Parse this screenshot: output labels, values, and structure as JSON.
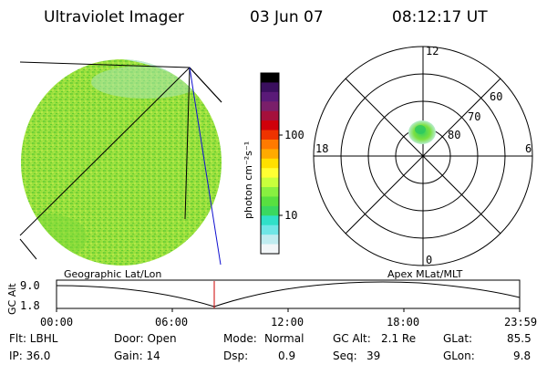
{
  "header": {
    "instrument": "Ultraviolet Imager",
    "date": "03 Jun 07",
    "time": "08:12:17 UT"
  },
  "colorbar": {
    "unit_label": "photon cm⁻²s⁻¹",
    "ticks": [
      "100",
      "10"
    ],
    "colors": [
      "#000000",
      "#3a0f5e",
      "#5a1a78",
      "#7a1f6a",
      "#a5103c",
      "#d0000a",
      "#ee3300",
      "#ff7a00",
      "#ffaa00",
      "#ffe000",
      "#ffff33",
      "#c8ff3c",
      "#88f040",
      "#58e040",
      "#3ad860",
      "#30e0c8",
      "#6fe6e6",
      "#c0ecf0",
      "#f2f6f8"
    ]
  },
  "polar": {
    "hour_labels": {
      "top": "12",
      "left": "18",
      "right": "6",
      "bottom": "0"
    },
    "lat_labels": [
      "60",
      "70",
      "80"
    ]
  },
  "timeline": {
    "y_axis_label": "GC Alt",
    "y_ticks": [
      "9.0",
      "1.8"
    ],
    "left_title": "Geographic Lat/Lon",
    "right_title": "Apex MLat/MLT",
    "x_ticks": [
      "00:00",
      "06:00",
      "12:00",
      "18:00",
      "23:59"
    ],
    "marker_color": "#cc0000"
  },
  "info": {
    "filter": "Flt: LBHL",
    "ip": "IP: 36.0",
    "door": "Door: Open",
    "gain": "Gain: 14",
    "mode_label": "Mode:",
    "mode_value": "Normal",
    "dsp_label": "Dsp:",
    "dsp_value": "0.9",
    "gcalt_label": "GC Alt:",
    "gcalt_value": "2.1 Re",
    "seq_label": "Seq:",
    "seq_value": "39",
    "glat_label": "GLat:",
    "glat_value": "85.5",
    "glon_label": "GLon:",
    "glon_value": "9.8"
  }
}
